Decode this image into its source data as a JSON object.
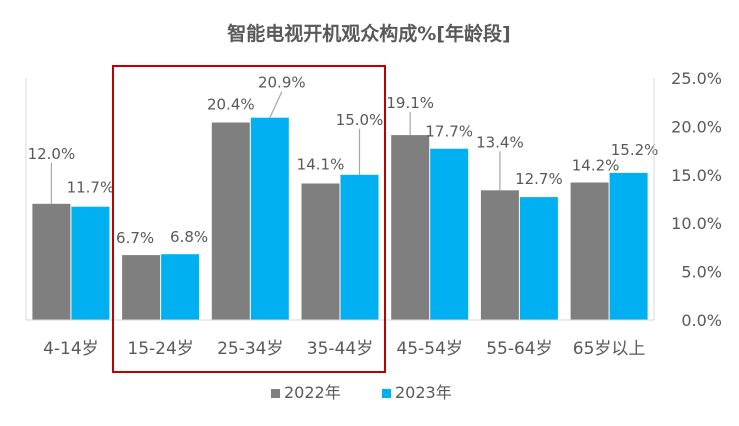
{
  "chart_data": {
    "type": "bar",
    "title": "智能电视开机观众构成%[年龄段]",
    "categories": [
      "4-14岁",
      "15-24岁",
      "25-34岁",
      "35-44岁",
      "45-54岁",
      "55-64岁",
      "65岁以上"
    ],
    "series": [
      {
        "name": "2022年",
        "color": "#7f7f7f",
        "values": [
          12.0,
          6.7,
          20.4,
          14.1,
          19.1,
          13.4,
          14.2
        ],
        "labels": [
          "12.0%",
          "6.7%",
          "20.4%",
          "14.1%",
          "19.1%",
          "13.4%",
          "14.2%"
        ]
      },
      {
        "name": "2023年",
        "color": "#00b0f0",
        "values": [
          11.7,
          6.8,
          20.9,
          15.0,
          17.7,
          12.7,
          15.2
        ],
        "labels": [
          "11.7%",
          "6.8%",
          "20.9%",
          "15.0%",
          "17.7%",
          "12.7%",
          "15.2%"
        ]
      }
    ],
    "y_axis": {
      "position": "right",
      "ylim": [
        0,
        25
      ],
      "ticks": [
        "0.0%",
        "5.0%",
        "10.0%",
        "15.0%",
        "20.0%",
        "25.0%"
      ]
    },
    "grid": false,
    "legend": "bottom",
    "highlight": {
      "categories": [
        "15-24岁",
        "25-34岁",
        "35-44岁"
      ],
      "color": "#c00000"
    }
  }
}
